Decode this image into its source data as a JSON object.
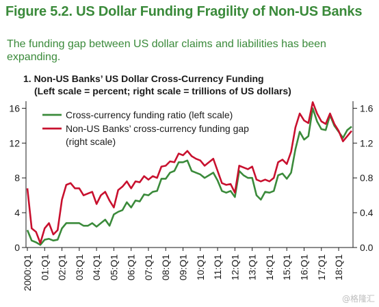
{
  "header": {
    "title": "Figure 5.2. US Dollar Funding Fragility of Non-US Banks",
    "subtitle": "The funding gap between US dollar claims and liabilities has been expanding."
  },
  "panel": {
    "title_line1": "1. Non-US Banks’ US Dollar Cross-Currency Funding",
    "title_line2": "(Left scale = percent; right scale = trillions of US dollars)"
  },
  "watermark": "@格隆汇",
  "colors": {
    "ratio": "#3a8a3a",
    "gap": "#c8102e",
    "axis": "#1a1a1a"
  },
  "chart_data": {
    "type": "line",
    "x_tick_labels": [
      "2000:Q1",
      "01:Q1",
      "02:Q1",
      "03:Q1",
      "04:Q1",
      "05:Q1",
      "06:Q1",
      "07:Q1",
      "08:Q1",
      "09:Q1",
      "10:Q1",
      "11:Q1",
      "12:Q1",
      "13:Q1",
      "14:Q1",
      "15:Q1",
      "16:Q1",
      "17:Q1",
      "18:Q1"
    ],
    "y_left": {
      "ticks": [
        0,
        4,
        8,
        12,
        16
      ],
      "lim": [
        0,
        16.5
      ]
    },
    "y_right": {
      "ticks": [
        "0.0",
        "0.4",
        "0.8",
        "1.2",
        "1.6"
      ],
      "lim": [
        0,
        1.65
      ]
    },
    "legend": [
      {
        "label_line1": "Cross-currency funding ratio (left scale)",
        "label_line2": "",
        "color": "#3a8a3a"
      },
      {
        "label_line1": "Non-US Banks’ cross-currency funding gap",
        "label_line2": "(right scale)",
        "color": "#c8102e"
      }
    ],
    "series": [
      {
        "name": "Cross-currency funding ratio (left scale)",
        "axis": "left",
        "values": [
          2.0,
          0.8,
          0.6,
          0.3,
          0.9,
          1.0,
          0.8,
          0.9,
          2.2,
          2.8,
          2.8,
          2.8,
          2.8,
          2.5,
          2.5,
          2.8,
          2.4,
          2.8,
          3.2,
          2.5,
          3.8,
          4.1,
          4.3,
          5.2,
          4.6,
          5.4,
          5.3,
          6.1,
          6.0,
          6.4,
          6.5,
          7.9,
          7.9,
          8.6,
          8.8,
          9.8,
          9.8,
          10.0,
          8.8,
          8.6,
          8.4,
          8.0,
          8.3,
          8.6,
          7.7,
          6.5,
          6.3,
          6.5,
          5.8,
          8.8,
          8.3,
          8.0,
          8.0,
          6.0,
          5.5,
          6.4,
          6.3,
          6.5,
          8.3,
          8.5,
          7.9,
          8.6,
          11.3,
          13.3,
          12.4,
          12.8,
          16.0,
          14.5,
          13.6,
          13.5,
          15.2,
          14.0,
          13.3,
          12.6,
          13.5,
          13.9
        ]
      },
      {
        "name": "Non-US Banks’ cross-currency funding gap (right scale)",
        "axis": "right",
        "values": [
          0.68,
          0.22,
          0.18,
          0.05,
          0.22,
          0.28,
          0.15,
          0.2,
          0.55,
          0.72,
          0.74,
          0.68,
          0.68,
          0.6,
          0.62,
          0.64,
          0.5,
          0.6,
          0.64,
          0.54,
          0.46,
          0.66,
          0.7,
          0.76,
          0.68,
          0.76,
          0.75,
          0.82,
          0.78,
          0.82,
          0.8,
          0.93,
          0.94,
          0.99,
          0.98,
          1.08,
          1.06,
          1.11,
          1.05,
          1.02,
          1.0,
          0.94,
          0.98,
          1.02,
          0.88,
          0.74,
          0.72,
          0.73,
          0.63,
          0.94,
          0.92,
          0.9,
          0.93,
          0.78,
          0.76,
          0.78,
          0.76,
          0.8,
          0.98,
          1.01,
          0.96,
          1.1,
          1.38,
          1.54,
          1.46,
          1.43,
          1.67,
          1.54,
          1.45,
          1.42,
          1.54,
          1.42,
          1.34,
          1.22,
          1.28,
          1.34
        ]
      }
    ]
  }
}
